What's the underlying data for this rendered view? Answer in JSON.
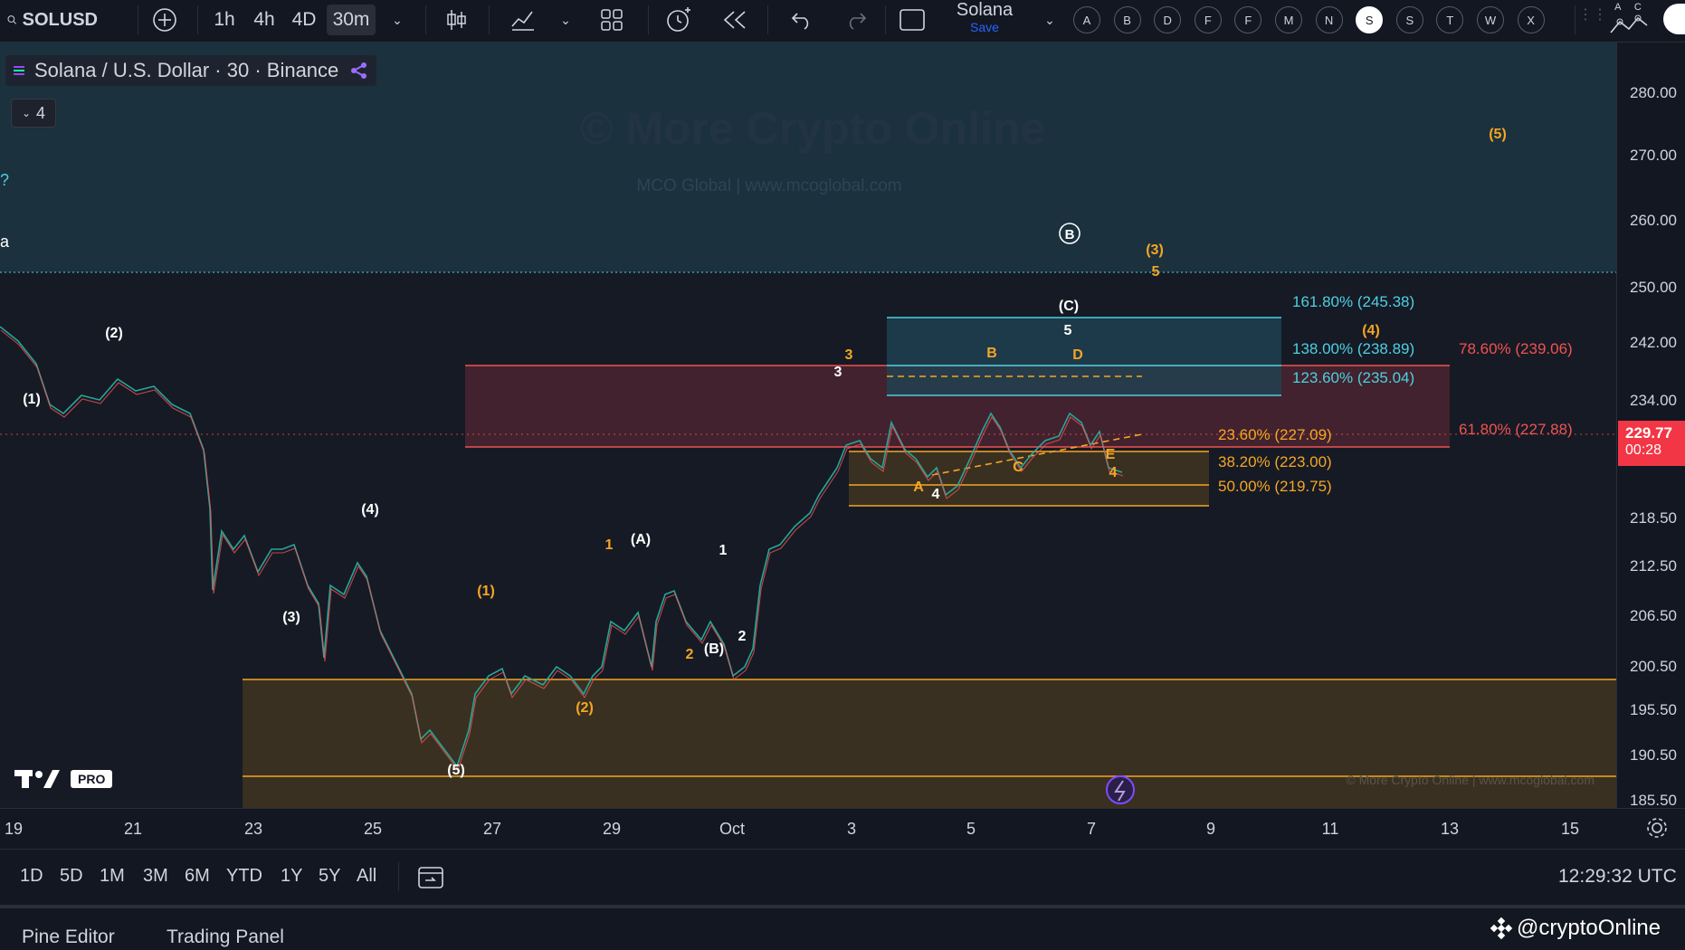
{
  "toolbar": {
    "symbol": "SOLUSD",
    "timeframes": [
      "1h",
      "4h",
      "4D",
      "30m"
    ],
    "active_timeframe": "30m",
    "layout_name": "Solana",
    "layout_save": "Save",
    "alert_buttons": [
      "A",
      "B",
      "D",
      "F",
      "F",
      "M",
      "N",
      "S",
      "S",
      "T",
      "W",
      "X"
    ],
    "selected_alert": "S",
    "corner_letters": "A C"
  },
  "chart": {
    "legend": "Solana / U.S. Dollar · 30 · Binance",
    "indicator_count": "4",
    "watermark_title": "© More Crypto Online",
    "watermark_sub": "MCO Global   |   www.mcoglobal.com",
    "footer_watermark": "© More Crypto Online   |   www.mcoglobal.com",
    "tv_badge": "PRO",
    "current_price": "229.77",
    "countdown": "00:28"
  },
  "price_axis": {
    "ticks": [
      "280.00",
      "270.00",
      "260.00",
      "250.00",
      "242.00",
      "234.00",
      "218.50",
      "212.50",
      "206.50",
      "200.50",
      "195.50",
      "190.50",
      "185.50"
    ]
  },
  "time_axis": {
    "labels": [
      "19",
      "21",
      "23",
      "25",
      "27",
      "29",
      "Oct",
      "3",
      "5",
      "7",
      "9",
      "11",
      "13",
      "15"
    ]
  },
  "fib_levels": {
    "ext_1618": "161.80% (245.38)",
    "ext_138": "138.00% (238.89)",
    "ext_1236": "123.60% (235.04)",
    "ret_786": "78.60% (239.06)",
    "ret_618": "61.80% (227.88)",
    "ret_236": "23.60% (227.09)",
    "ret_382": "38.20% (223.00)",
    "ret_50": "50.00% (219.75)"
  },
  "waves": {
    "w1": "(1)",
    "w2": "(2)",
    "w3": "(3)",
    "w4": "(4)",
    "w5": "(5)",
    "o1": "(1)",
    "o2": "(2)",
    "o3": "(3)",
    "o4": "(4)",
    "o5": "(5)",
    "wA": "(A)",
    "wB": "(B)",
    "wC": "(C)",
    "circB": "B",
    "n1": "1",
    "n2": "2",
    "n3": "3",
    "n4": "4",
    "n5": "5",
    "y1": "1",
    "y2": "2",
    "y3": "3",
    "y4": "4",
    "y5": "5",
    "y4b": "4",
    "tA": "A",
    "tB": "B",
    "tC": "C",
    "tD": "D",
    "tE": "E"
  },
  "range_bar": {
    "ranges": [
      "1D",
      "5D",
      "1M",
      "3M",
      "6M",
      "YTD",
      "1Y",
      "5Y",
      "All"
    ],
    "clock": "12:29:32 UTC"
  },
  "bottom_tabs": {
    "pine": "Pine Editor",
    "trading": "Trading Panel",
    "handle": "@cryptoOnline"
  },
  "colors": {
    "background": "#161a25",
    "up": "#26a69a",
    "down": "#ef5350",
    "orange": "#f5a623",
    "cyan": "#4dd0e1",
    "red_zone": "#ef5350",
    "price_tag": "#f23645"
  }
}
